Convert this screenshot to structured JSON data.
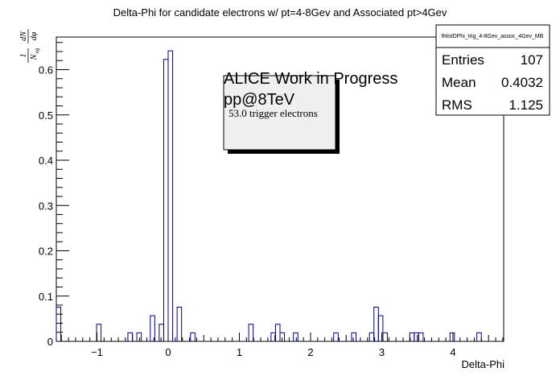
{
  "title": "Delta-Phi for candidate electrons w/ pt=4-8Gev and Associated pt>4Gev",
  "stats_box": {
    "name": "fHistDPhi_trig_4-8Gev_assoc_4Gev_MB",
    "rows": [
      {
        "label": "Entries",
        "value": "107"
      },
      {
        "label": "Mean",
        "value": "0.4032"
      },
      {
        "label": "RMS",
        "value": "1.125"
      }
    ]
  },
  "annotation": {
    "line1": "ALICE Work in Progress",
    "line2": "pp@8TeV",
    "line3": "53.0 trigger electrons"
  },
  "chart_data": {
    "type": "histogram",
    "title": "Delta-Phi for candidate electrons w/ pt=4-8Gev and Associated pt>4Gev",
    "xlabel": "Delta-Phi",
    "ylabel_parts": {
      "num": "1",
      "den_main": "N",
      "den_sub": "eg",
      "frac_num": "dN",
      "frac_den": "dφ"
    },
    "xlim": [
      -1.5708,
      4.7124
    ],
    "ylim": [
      0,
      0.672
    ],
    "x_ticks": [
      -1,
      0,
      1,
      2,
      3,
      4
    ],
    "x_tick_labels": [
      "−1",
      "0",
      "1",
      "2",
      "3",
      "4"
    ],
    "y_ticks": [
      0,
      0.1,
      0.2,
      0.3,
      0.4,
      0.5,
      0.6
    ],
    "y_tick_labels": [
      "0",
      "0.1",
      "0.2",
      "0.3",
      "0.4",
      "0.5",
      "0.6"
    ],
    "line_color": "#000080",
    "bin_count": 100,
    "bins": [
      {
        "x": -1.5394,
        "y": 0.0755
      },
      {
        "x": -0.9739,
        "y": 0.0377
      },
      {
        "x": -0.5341,
        "y": 0.0189
      },
      {
        "x": -0.4084,
        "y": 0.0189
      },
      {
        "x": -0.2199,
        "y": 0.0566
      },
      {
        "x": -0.0942,
        "y": 0.0377
      },
      {
        "x": -0.0314,
        "y": 0.6226
      },
      {
        "x": 0.0314,
        "y": 0.6415
      },
      {
        "x": 0.1571,
        "y": 0.0755
      },
      {
        "x": 0.3456,
        "y": 0.0189
      },
      {
        "x": 1.1624,
        "y": 0.0377
      },
      {
        "x": 1.4765,
        "y": 0.0189
      },
      {
        "x": 1.5394,
        "y": 0.0377
      },
      {
        "x": 1.6022,
        "y": 0.0189
      },
      {
        "x": 1.7907,
        "y": 0.0189
      },
      {
        "x": 2.3562,
        "y": 0.0189
      },
      {
        "x": 2.6075,
        "y": 0.0189
      },
      {
        "x": 2.8588,
        "y": 0.0189
      },
      {
        "x": 2.9216,
        "y": 0.0755
      },
      {
        "x": 2.9845,
        "y": 0.0566
      },
      {
        "x": 3.0473,
        "y": 0.0189
      },
      {
        "x": 3.4243,
        "y": 0.0189
      },
      {
        "x": 3.4871,
        "y": 0.0189
      },
      {
        "x": 3.55,
        "y": 0.0189
      },
      {
        "x": 3.9898,
        "y": 0.0189
      },
      {
        "x": 4.3668,
        "y": 0.0189
      }
    ]
  }
}
